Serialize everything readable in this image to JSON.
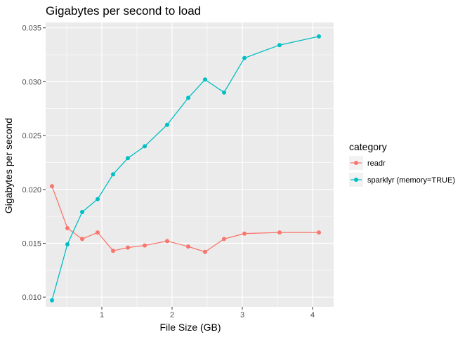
{
  "chart_data": {
    "type": "line",
    "title": "Gigabytes per second to load",
    "xlabel": "File Size (GB)",
    "ylabel": "Gigabytes per second",
    "xlim": [
      0.2,
      4.3
    ],
    "ylim": [
      0.0091,
      0.0355
    ],
    "xticks": [
      1,
      2,
      3,
      4
    ],
    "xtick_labels": [
      "1",
      "2",
      "3",
      "4"
    ],
    "yticks": [
      0.01,
      0.015,
      0.02,
      0.025,
      0.03,
      0.035
    ],
    "ytick_labels": [
      "0.010",
      "0.015",
      "0.020",
      "0.025",
      "0.030",
      "0.035"
    ],
    "grid": true,
    "legend_title": "category",
    "legend_position": "right",
    "series": [
      {
        "name": "readr",
        "color": "#F8766D",
        "points": [
          [
            0.29,
            0.0203
          ],
          [
            0.51,
            0.0164
          ],
          [
            0.72,
            0.0154
          ],
          [
            0.94,
            0.016
          ],
          [
            1.16,
            0.0143
          ],
          [
            1.37,
            0.0146
          ],
          [
            1.61,
            0.0148
          ],
          [
            1.93,
            0.0152
          ],
          [
            2.23,
            0.0147
          ],
          [
            2.47,
            0.0142
          ],
          [
            2.74,
            0.0154
          ],
          [
            3.03,
            0.0159
          ],
          [
            3.53,
            0.016
          ],
          [
            4.09,
            0.016
          ]
        ]
      },
      {
        "name": "sparklyr (memory=TRUE)",
        "color": "#00BFC4",
        "points": [
          [
            0.29,
            0.0097
          ],
          [
            0.51,
            0.0149
          ],
          [
            0.72,
            0.0179
          ],
          [
            0.94,
            0.0191
          ],
          [
            1.16,
            0.0214
          ],
          [
            1.37,
            0.0229
          ],
          [
            1.61,
            0.024
          ],
          [
            1.93,
            0.026
          ],
          [
            2.23,
            0.0285
          ],
          [
            2.47,
            0.0302
          ],
          [
            2.74,
            0.029
          ],
          [
            3.03,
            0.0322
          ],
          [
            3.53,
            0.0334
          ],
          [
            4.09,
            0.0342
          ]
        ]
      }
    ]
  }
}
